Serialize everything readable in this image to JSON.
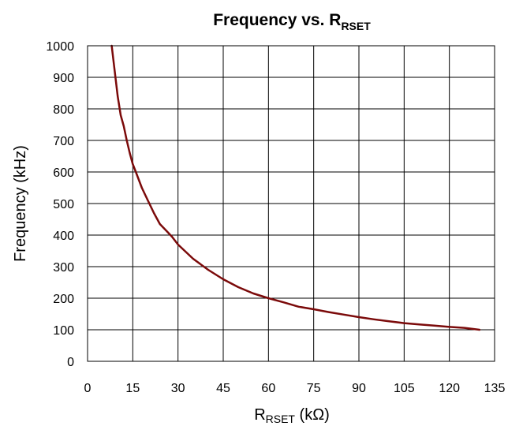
{
  "chart_data": {
    "type": "line",
    "title": {
      "main": "Frequency vs. R",
      "sub": "RSET"
    },
    "xlabel": {
      "main": "R",
      "sub": "RSET",
      "rest": " (kΩ)"
    },
    "ylabel": "Frequency (kHz)",
    "xlim": [
      0,
      135
    ],
    "ylim": [
      0,
      1000
    ],
    "xticks": [
      0,
      15,
      30,
      45,
      60,
      75,
      90,
      105,
      120,
      135
    ],
    "yticks": [
      0,
      100,
      200,
      300,
      400,
      500,
      600,
      700,
      800,
      900,
      1000
    ],
    "grid": true,
    "series": [
      {
        "color": "#7b0a0a",
        "x": [
          8,
          9,
          10,
          11,
          12,
          13,
          14,
          15,
          16,
          17,
          18,
          20,
          22,
          24,
          26,
          28,
          30,
          35,
          40,
          45,
          50,
          55,
          60,
          65,
          70,
          75,
          80,
          85,
          90,
          95,
          100,
          105,
          110,
          115,
          120,
          125,
          130
        ],
        "y": [
          1000,
          920,
          840,
          780,
          745,
          700,
          660,
          625,
          600,
          575,
          550,
          510,
          470,
          435,
          415,
          395,
          370,
          325,
          290,
          260,
          235,
          215,
          200,
          187,
          173,
          165,
          156,
          148,
          140,
          133,
          127,
          121,
          117,
          113,
          109,
          106,
          100
        ]
      }
    ]
  }
}
